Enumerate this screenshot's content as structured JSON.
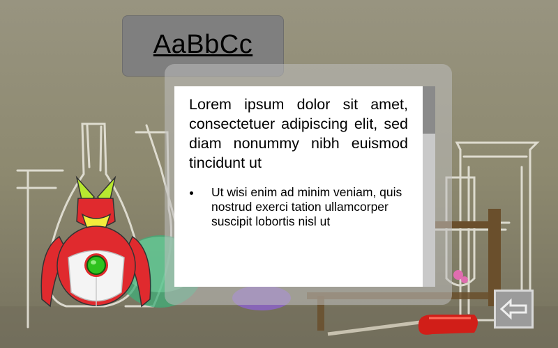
{
  "title": {
    "text": "AaBbCc"
  },
  "content": {
    "paragraph": "Lorem ipsum dolor sit amet, consectetuer adipiscing elit, sed diam nonummy nibh euismod tincidunt ut",
    "bullets": [
      "Ut wisi enim ad minim veniam, quis nostrud exerci tation ullamcorper suscipit lobortis nisl ut"
    ]
  },
  "icons": {
    "back": "back-arrow-icon",
    "mascot": "robot-mascot",
    "background": "chalk-lab-background"
  },
  "colors": {
    "background": "#8f8b75",
    "title_tab": "#7f7f7f",
    "robot_red": "#e02a2e",
    "robot_green": "#2ec21e"
  }
}
